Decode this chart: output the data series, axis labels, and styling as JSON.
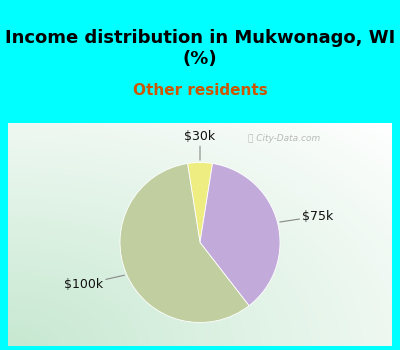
{
  "title": "Income distribution in Mukwonago, WI\n(%)",
  "subtitle": "Other residents",
  "title_color": "#000000",
  "subtitle_color": "#cc5500",
  "bg_cyan": "#00ffff",
  "chart_bg_left": "#c8e8d0",
  "chart_bg_right": "#e8f4f0",
  "slices": [
    {
      "label": "$30k",
      "value": 5,
      "color": "#eeed82"
    },
    {
      "label": "$75k",
      "value": 37,
      "color": "#c2aada"
    },
    {
      "label": "$100k",
      "value": 58,
      "color": "#c0cea0"
    }
  ],
  "label_fontsize": 9,
  "title_fontsize": 13,
  "subtitle_fontsize": 11,
  "watermark": "City-Data.com"
}
